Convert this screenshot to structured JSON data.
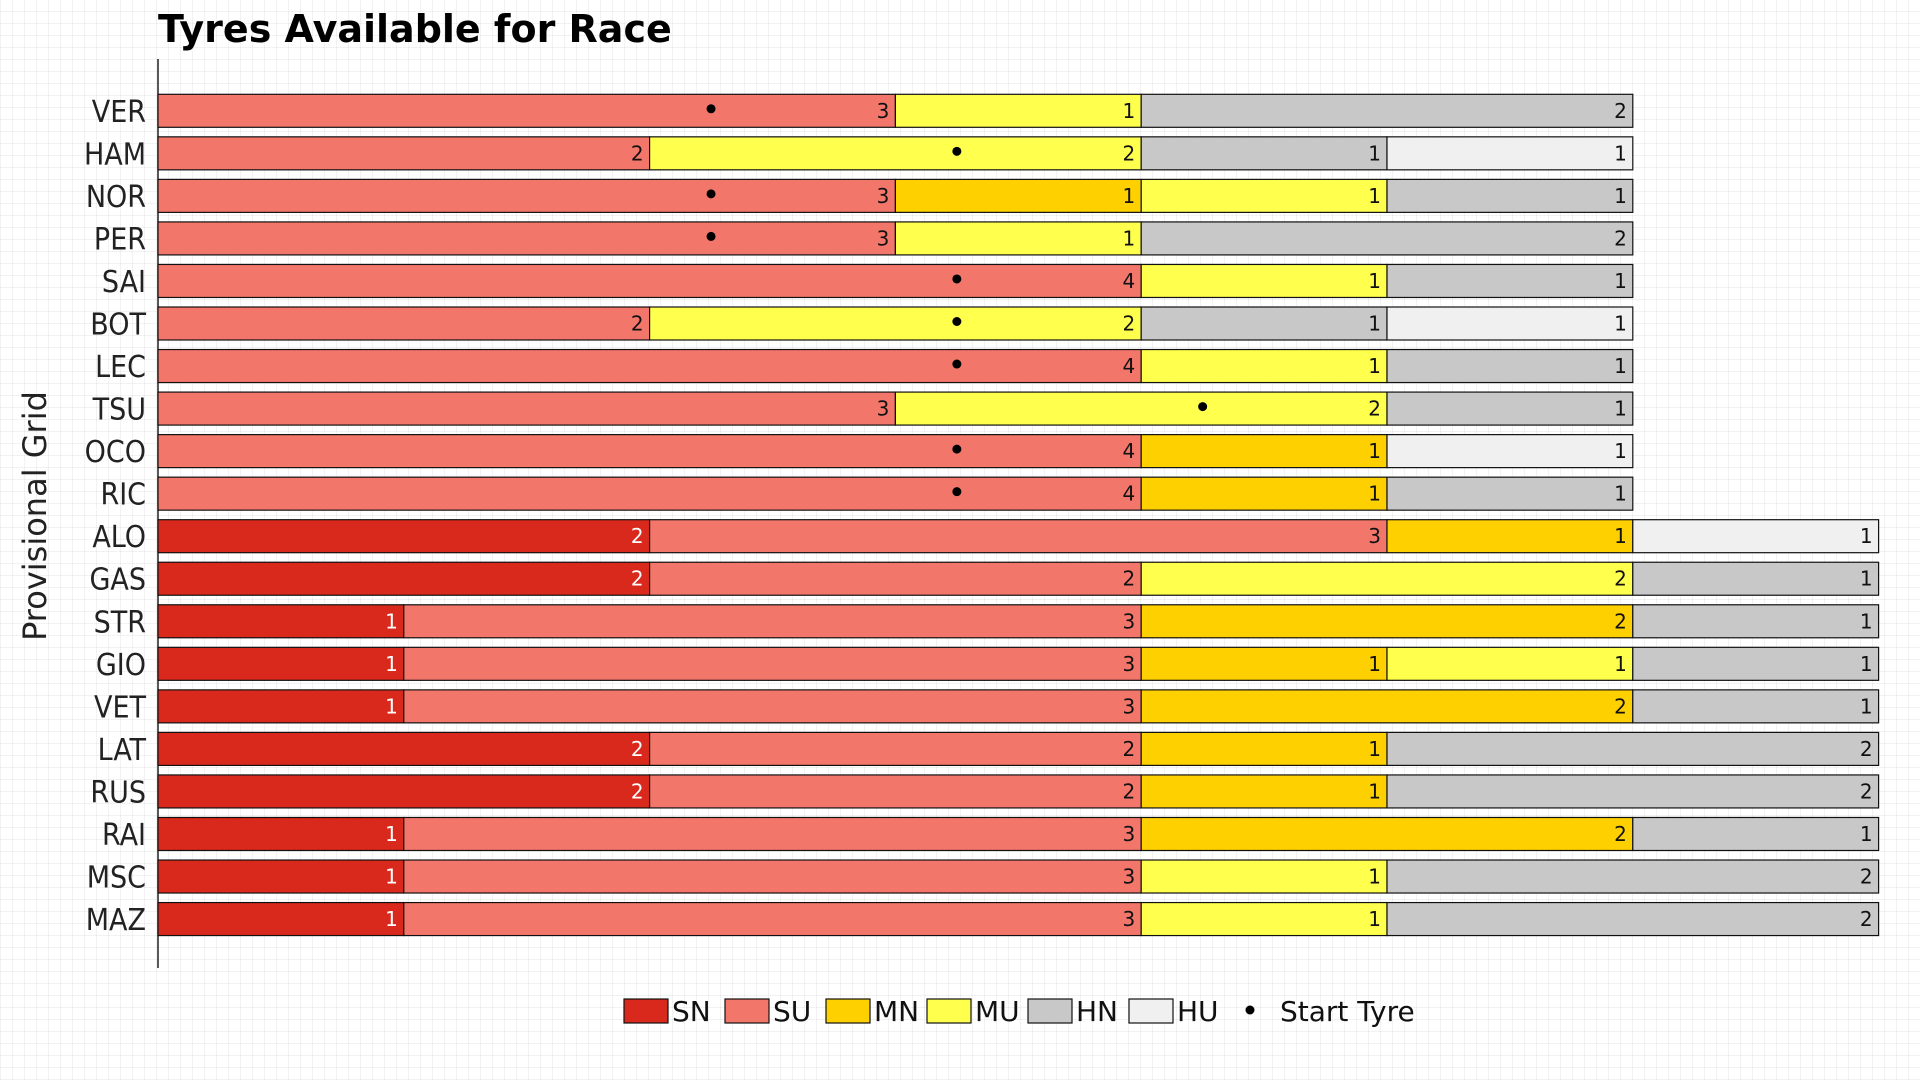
{
  "chart_data": {
    "type": "bar",
    "orientation": "horizontal",
    "stacked": true,
    "title": "Tyres Available for Race",
    "ylabel": "Provisional Grid",
    "xlabel": "",
    "legend_position": "bottom",
    "grid": false,
    "compound_colors": {
      "SN": "#d9291c",
      "SU": "#f3766b",
      "MN": "#ffd000",
      "MU": "#ffff4d",
      "HN": "#c8c8c8",
      "HU": "#f0f0f0"
    },
    "legend": [
      {
        "key": "SN",
        "label": "SN"
      },
      {
        "key": "SU",
        "label": "SU"
      },
      {
        "key": "MN",
        "label": "MN"
      },
      {
        "key": "MU",
        "label": "MU"
      },
      {
        "key": "HN",
        "label": "HN"
      },
      {
        "key": "HU",
        "label": "HU"
      }
    ],
    "start_tyre_label": "Start Tyre",
    "drivers": [
      {
        "name": "VER",
        "segments": [
          [
            "SU",
            3
          ],
          [
            "MU",
            1
          ],
          [
            "HN",
            2
          ]
        ],
        "start": "SU"
      },
      {
        "name": "HAM",
        "segments": [
          [
            "SU",
            2
          ],
          [
            "MU",
            2
          ],
          [
            "HN",
            1
          ],
          [
            "HU",
            1
          ]
        ],
        "start": "MU"
      },
      {
        "name": "NOR",
        "segments": [
          [
            "SU",
            3
          ],
          [
            "MN",
            1
          ],
          [
            "MU",
            1
          ],
          [
            "HN",
            1
          ]
        ],
        "start": "SU"
      },
      {
        "name": "PER",
        "segments": [
          [
            "SU",
            3
          ],
          [
            "MU",
            1
          ],
          [
            "HN",
            2
          ]
        ],
        "start": "SU"
      },
      {
        "name": "SAI",
        "segments": [
          [
            "SU",
            4
          ],
          [
            "MU",
            1
          ],
          [
            "HN",
            1
          ]
        ],
        "start": "SU"
      },
      {
        "name": "BOT",
        "segments": [
          [
            "SU",
            2
          ],
          [
            "MU",
            2
          ],
          [
            "HN",
            1
          ],
          [
            "HU",
            1
          ]
        ],
        "start": "MU"
      },
      {
        "name": "LEC",
        "segments": [
          [
            "SU",
            4
          ],
          [
            "MU",
            1
          ],
          [
            "HN",
            1
          ]
        ],
        "start": "SU"
      },
      {
        "name": "TSU",
        "segments": [
          [
            "SU",
            3
          ],
          [
            "MU",
            2
          ],
          [
            "HN",
            1
          ]
        ],
        "start": "MU"
      },
      {
        "name": "OCO",
        "segments": [
          [
            "SU",
            4
          ],
          [
            "MN",
            1
          ],
          [
            "HU",
            1
          ]
        ],
        "start": "SU"
      },
      {
        "name": "RIC",
        "segments": [
          [
            "SU",
            4
          ],
          [
            "MN",
            1
          ],
          [
            "HN",
            1
          ]
        ],
        "start": "SU"
      },
      {
        "name": "ALO",
        "segments": [
          [
            "SN",
            2
          ],
          [
            "SU",
            3
          ],
          [
            "MN",
            1
          ],
          [
            "HU",
            1
          ]
        ],
        "start": null
      },
      {
        "name": "GAS",
        "segments": [
          [
            "SN",
            2
          ],
          [
            "SU",
            2
          ],
          [
            "MU",
            2
          ],
          [
            "HN",
            1
          ]
        ],
        "start": null
      },
      {
        "name": "STR",
        "segments": [
          [
            "SN",
            1
          ],
          [
            "SU",
            3
          ],
          [
            "MN",
            2
          ],
          [
            "HN",
            1
          ]
        ],
        "start": null
      },
      {
        "name": "GIO",
        "segments": [
          [
            "SN",
            1
          ],
          [
            "SU",
            3
          ],
          [
            "MN",
            1
          ],
          [
            "MU",
            1
          ],
          [
            "HN",
            1
          ]
        ],
        "start": null
      },
      {
        "name": "VET",
        "segments": [
          [
            "SN",
            1
          ],
          [
            "SU",
            3
          ],
          [
            "MN",
            2
          ],
          [
            "HN",
            1
          ]
        ],
        "start": null
      },
      {
        "name": "LAT",
        "segments": [
          [
            "SN",
            2
          ],
          [
            "SU",
            2
          ],
          [
            "MN",
            1
          ],
          [
            "HN",
            2
          ]
        ],
        "start": null
      },
      {
        "name": "RUS",
        "segments": [
          [
            "SN",
            2
          ],
          [
            "SU",
            2
          ],
          [
            "MN",
            1
          ],
          [
            "HN",
            2
          ]
        ],
        "start": null
      },
      {
        "name": "RAI",
        "segments": [
          [
            "SN",
            1
          ],
          [
            "SU",
            3
          ],
          [
            "MN",
            2
          ],
          [
            "HN",
            1
          ]
        ],
        "start": null
      },
      {
        "name": "MSC",
        "segments": [
          [
            "SN",
            1
          ],
          [
            "SU",
            3
          ],
          [
            "MU",
            1
          ],
          [
            "HN",
            2
          ]
        ],
        "start": null
      },
      {
        "name": "MAZ",
        "segments": [
          [
            "SN",
            1
          ],
          [
            "SU",
            3
          ],
          [
            "MU",
            1
          ],
          [
            "HN",
            2
          ]
        ],
        "start": null
      }
    ]
  }
}
